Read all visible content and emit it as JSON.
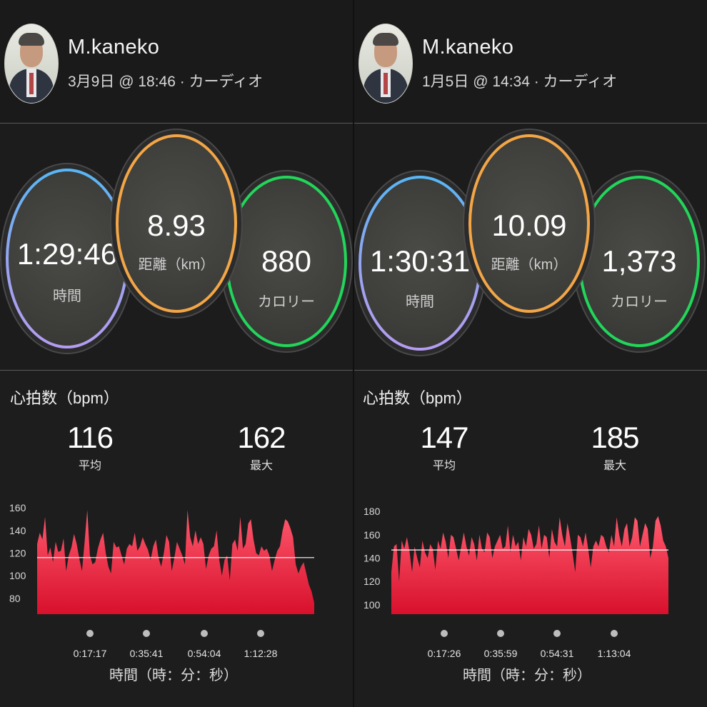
{
  "panels": [
    {
      "user": {
        "name": "M.kaneko",
        "meta": "3月9日 @ 18:46 · カーディオ"
      },
      "stats": {
        "time": {
          "value": "1:29:46",
          "label": "時間"
        },
        "distance": {
          "value": "8.93",
          "label": "距離（km）"
        },
        "calories": {
          "value": "880",
          "label": "カロリー"
        }
      },
      "heart_rate": {
        "title": "心拍数（bpm）",
        "avg": {
          "value": "116",
          "label": "平均"
        },
        "max": {
          "value": "162",
          "label": "最大"
        }
      },
      "chart_data": {
        "type": "area",
        "xlabel": "時間（時：分：秒）",
        "ylabel": "",
        "yticks": [
          80,
          100,
          120,
          140,
          160
        ],
        "ylim": [
          66,
          162
        ],
        "xticks": [
          "0:17:17",
          "0:35:41",
          "0:54:04",
          "1:12:28"
        ],
        "avg_line": 116,
        "values": [
          128,
          138,
          132,
          152,
          118,
          125,
          112,
          130,
          121,
          122,
          133,
          104,
          118,
          125,
          137,
          128,
          115,
          104,
          130,
          158,
          118,
          110,
          112,
          124,
          132,
          138,
          120,
          108,
          102,
          130,
          125,
          126,
          118,
          110,
          124,
          128,
          126,
          138,
          122,
          126,
          134,
          128,
          123,
          114,
          126,
          132,
          116,
          108,
          120,
          136,
          130,
          104,
          116,
          130,
          124,
          118,
          110,
          158,
          134,
          126,
          140,
          128,
          134,
          128,
          106,
          118,
          124,
          126,
          140,
          114,
          100,
          114,
          118,
          96,
          128,
          132,
          122,
          152,
          124,
          128,
          146,
          150,
          132,
          120,
          118,
          126,
          122,
          124,
          118,
          104,
          114,
          122,
          126,
          140,
          150,
          148,
          142,
          134,
          110,
          102,
          108,
          112,
          102,
          92,
          86,
          76
        ]
      }
    },
    {
      "user": {
        "name": "M.kaneko",
        "meta": "1月5日 @ 14:34 · カーディオ"
      },
      "stats": {
        "time": {
          "value": "1:30:31",
          "label": "時間"
        },
        "distance": {
          "value": "10.09",
          "label": "距離（km）"
        },
        "calories": {
          "value": "1,373",
          "label": "カロリー"
        }
      },
      "heart_rate": {
        "title": "心拍数（bpm）",
        "avg": {
          "value": "147",
          "label": "平均"
        },
        "max": {
          "value": "185",
          "label": "最大"
        }
      },
      "chart_data": {
        "type": "area",
        "xlabel": "時間（時：分：秒）",
        "ylabel": "",
        "yticks": [
          100,
          120,
          140,
          160,
          180
        ],
        "ylim": [
          92,
          185
        ],
        "xticks": [
          "0:17:26",
          "0:35:59",
          "0:54:31",
          "1:13:04"
        ],
        "avg_line": 147,
        "values": [
          128,
          150,
          152,
          120,
          155,
          148,
          158,
          146,
          128,
          150,
          140,
          132,
          155,
          145,
          140,
          152,
          148,
          130,
          155,
          148,
          162,
          154,
          140,
          160,
          158,
          148,
          138,
          150,
          162,
          150,
          142,
          158,
          152,
          138,
          160,
          148,
          145,
          162,
          158,
          140,
          150,
          155,
          160,
          148,
          150,
          168,
          145,
          160,
          150,
          154,
          138,
          158,
          150,
          165,
          160,
          148,
          152,
          168,
          148,
          160,
          158,
          140,
          165,
          154,
          150,
          175,
          160,
          150,
          170,
          158,
          144,
          128,
          160,
          158,
          150,
          162,
          148,
          132,
          150,
          155,
          150,
          160,
          158,
          150,
          145,
          160,
          150,
          175,
          160,
          150,
          165,
          170,
          150,
          158,
          175,
          172,
          150,
          160,
          170,
          165,
          140,
          150,
          172,
          176,
          168,
          155,
          150,
          140
        ]
      }
    }
  ]
}
